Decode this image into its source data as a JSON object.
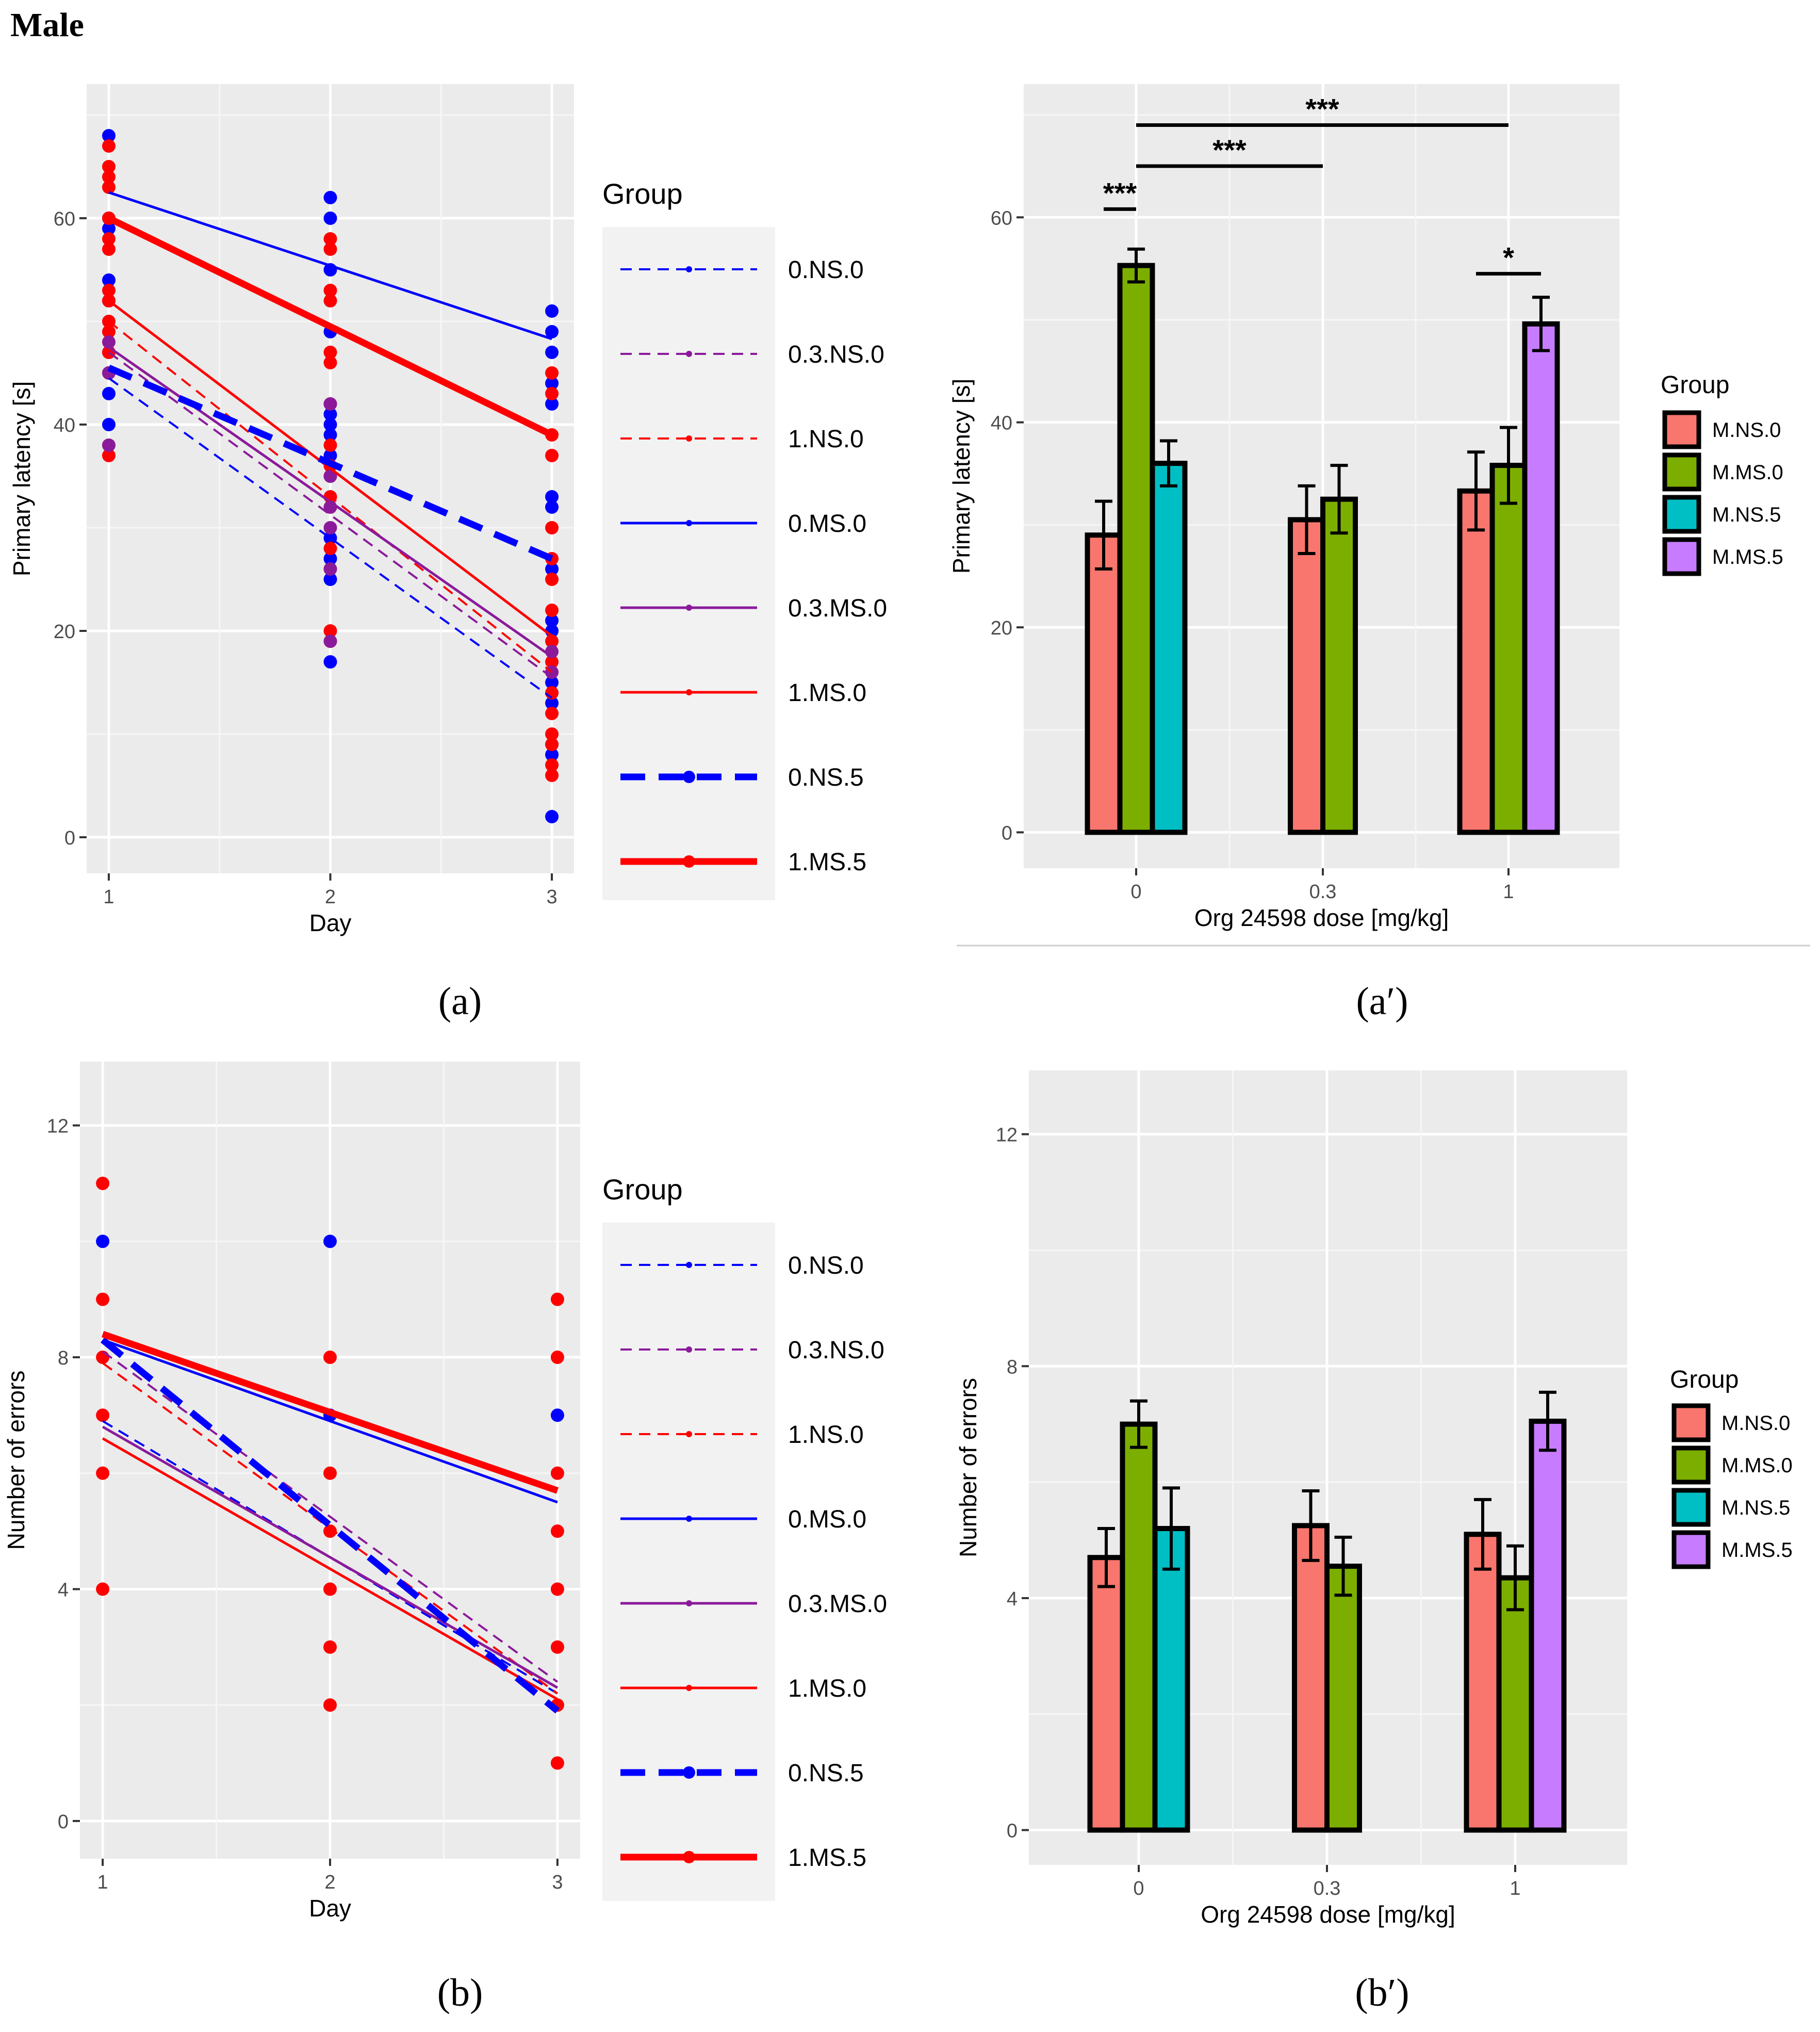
{
  "figure": {
    "title": "Male",
    "panel_labels": [
      "(a)",
      "(a′)",
      "(b)",
      "(b′)"
    ]
  },
  "legend_lines": {
    "title": "Group",
    "entries": [
      {
        "label": "0.NS.0",
        "color": "#0000ff",
        "style": "dashed-thin"
      },
      {
        "label": "0.3.NS.0",
        "color": "#8b1a9b",
        "style": "dashed-thin"
      },
      {
        "label": "1.NS.0",
        "color": "#ff0000",
        "style": "dashed-thin"
      },
      {
        "label": "0.MS.0",
        "color": "#0000ff",
        "style": "solid-thin"
      },
      {
        "label": "0.3.MS.0",
        "color": "#8b1a9b",
        "style": "solid-thin"
      },
      {
        "label": "1.MS.0",
        "color": "#ff0000",
        "style": "solid-thin"
      },
      {
        "label": "0.NS.5",
        "color": "#0000ff",
        "style": "dashed-thick"
      },
      {
        "label": "1.MS.5",
        "color": "#ff0000",
        "style": "solid-thick"
      }
    ]
  },
  "legend_bars": {
    "title": "Group",
    "entries": [
      {
        "label": "M.NS.0",
        "color": "#f8766d"
      },
      {
        "label": "M.MS.0",
        "color": "#7cae00"
      },
      {
        "label": "M.NS.5",
        "color": "#00bfc4"
      },
      {
        "label": "M.MS.5",
        "color": "#c77cff"
      }
    ]
  },
  "chart_data": [
    {
      "type": "scatter",
      "panel": "a",
      "xlabel": "Day",
      "ylabel": "Primary latency [s]",
      "xlim": [
        0.9,
        3.1
      ],
      "ylim": [
        -3.5,
        73
      ],
      "xticks": [
        1,
        2,
        3
      ],
      "yticks": [
        0,
        20,
        40,
        60
      ],
      "grid": true,
      "points": [
        {
          "x": 1,
          "y": 68,
          "c": "b"
        },
        {
          "x": 1,
          "y": 60,
          "c": "b"
        },
        {
          "x": 1,
          "y": 59,
          "c": "b"
        },
        {
          "x": 1,
          "y": 54,
          "c": "b"
        },
        {
          "x": 1,
          "y": 52,
          "c": "b"
        },
        {
          "x": 1,
          "y": 47,
          "c": "b"
        },
        {
          "x": 1,
          "y": 45,
          "c": "b"
        },
        {
          "x": 1,
          "y": 43,
          "c": "b"
        },
        {
          "x": 1,
          "y": 40,
          "c": "b"
        },
        {
          "x": 1,
          "y": 67,
          "c": "r"
        },
        {
          "x": 1,
          "y": 65,
          "c": "r"
        },
        {
          "x": 1,
          "y": 64,
          "c": "r"
        },
        {
          "x": 1,
          "y": 63,
          "c": "r"
        },
        {
          "x": 1,
          "y": 60,
          "c": "r"
        },
        {
          "x": 1,
          "y": 58,
          "c": "r"
        },
        {
          "x": 1,
          "y": 57,
          "c": "r"
        },
        {
          "x": 1,
          "y": 53,
          "c": "r"
        },
        {
          "x": 1,
          "y": 52,
          "c": "r"
        },
        {
          "x": 1,
          "y": 50,
          "c": "r"
        },
        {
          "x": 1,
          "y": 49,
          "c": "r"
        },
        {
          "x": 1,
          "y": 47,
          "c": "r"
        },
        {
          "x": 1,
          "y": 45,
          "c": "r"
        },
        {
          "x": 1,
          "y": 38,
          "c": "r"
        },
        {
          "x": 1,
          "y": 37,
          "c": "r"
        },
        {
          "x": 1,
          "y": 48,
          "c": "p"
        },
        {
          "x": 1,
          "y": 45,
          "c": "p"
        },
        {
          "x": 1,
          "y": 38,
          "c": "p"
        },
        {
          "x": 2,
          "y": 62,
          "c": "b"
        },
        {
          "x": 2,
          "y": 60,
          "c": "b"
        },
        {
          "x": 2,
          "y": 55,
          "c": "b"
        },
        {
          "x": 2,
          "y": 49,
          "c": "b"
        },
        {
          "x": 2,
          "y": 41,
          "c": "b"
        },
        {
          "x": 2,
          "y": 40,
          "c": "b"
        },
        {
          "x": 2,
          "y": 39,
          "c": "b"
        },
        {
          "x": 2,
          "y": 37,
          "c": "b"
        },
        {
          "x": 2,
          "y": 35,
          "c": "b"
        },
        {
          "x": 2,
          "y": 29,
          "c": "b"
        },
        {
          "x": 2,
          "y": 27,
          "c": "b"
        },
        {
          "x": 2,
          "y": 25,
          "c": "b"
        },
        {
          "x": 2,
          "y": 17,
          "c": "b"
        },
        {
          "x": 2,
          "y": 58,
          "c": "r"
        },
        {
          "x": 2,
          "y": 57,
          "c": "r"
        },
        {
          "x": 2,
          "y": 53,
          "c": "r"
        },
        {
          "x": 2,
          "y": 52,
          "c": "r"
        },
        {
          "x": 2,
          "y": 47,
          "c": "r"
        },
        {
          "x": 2,
          "y": 46,
          "c": "r"
        },
        {
          "x": 2,
          "y": 42,
          "c": "r"
        },
        {
          "x": 2,
          "y": 38,
          "c": "r"
        },
        {
          "x": 2,
          "y": 36,
          "c": "r"
        },
        {
          "x": 2,
          "y": 33,
          "c": "r"
        },
        {
          "x": 2,
          "y": 32,
          "c": "r"
        },
        {
          "x": 2,
          "y": 28,
          "c": "r"
        },
        {
          "x": 2,
          "y": 26,
          "c": "r"
        },
        {
          "x": 2,
          "y": 20,
          "c": "r"
        },
        {
          "x": 2,
          "y": 19,
          "c": "r"
        },
        {
          "x": 2,
          "y": 42,
          "c": "p"
        },
        {
          "x": 2,
          "y": 35,
          "c": "p"
        },
        {
          "x": 2,
          "y": 32,
          "c": "p"
        },
        {
          "x": 2,
          "y": 30,
          "c": "p"
        },
        {
          "x": 2,
          "y": 26,
          "c": "p"
        },
        {
          "x": 2,
          "y": 19,
          "c": "p"
        },
        {
          "x": 3,
          "y": 51,
          "c": "b"
        },
        {
          "x": 3,
          "y": 49,
          "c": "b"
        },
        {
          "x": 3,
          "y": 47,
          "c": "b"
        },
        {
          "x": 3,
          "y": 44,
          "c": "b"
        },
        {
          "x": 3,
          "y": 42,
          "c": "b"
        },
        {
          "x": 3,
          "y": 33,
          "c": "b"
        },
        {
          "x": 3,
          "y": 32,
          "c": "b"
        },
        {
          "x": 3,
          "y": 26,
          "c": "b"
        },
        {
          "x": 3,
          "y": 21,
          "c": "b"
        },
        {
          "x": 3,
          "y": 20,
          "c": "b"
        },
        {
          "x": 3,
          "y": 15,
          "c": "b"
        },
        {
          "x": 3,
          "y": 13,
          "c": "b"
        },
        {
          "x": 3,
          "y": 9,
          "c": "b"
        },
        {
          "x": 3,
          "y": 8,
          "c": "b"
        },
        {
          "x": 3,
          "y": 2,
          "c": "b"
        },
        {
          "x": 3,
          "y": 45,
          "c": "r"
        },
        {
          "x": 3,
          "y": 43,
          "c": "r"
        },
        {
          "x": 3,
          "y": 39,
          "c": "r"
        },
        {
          "x": 3,
          "y": 37,
          "c": "r"
        },
        {
          "x": 3,
          "y": 30,
          "c": "r"
        },
        {
          "x": 3,
          "y": 27,
          "c": "r"
        },
        {
          "x": 3,
          "y": 25,
          "c": "r"
        },
        {
          "x": 3,
          "y": 22,
          "c": "r"
        },
        {
          "x": 3,
          "y": 19,
          "c": "r"
        },
        {
          "x": 3,
          "y": 17,
          "c": "r"
        },
        {
          "x": 3,
          "y": 16,
          "c": "r"
        },
        {
          "x": 3,
          "y": 14,
          "c": "r"
        },
        {
          "x": 3,
          "y": 12,
          "c": "r"
        },
        {
          "x": 3,
          "y": 10,
          "c": "r"
        },
        {
          "x": 3,
          "y": 9,
          "c": "r"
        },
        {
          "x": 3,
          "y": 7,
          "c": "r"
        },
        {
          "x": 3,
          "y": 6,
          "c": "r"
        },
        {
          "x": 3,
          "y": 18,
          "c": "p"
        },
        {
          "x": 3,
          "y": 16,
          "c": "p"
        }
      ],
      "series": [
        {
          "name": "0.NS.0",
          "x": [
            1,
            3
          ],
          "y": [
            44.5,
            13.5
          ]
        },
        {
          "name": "0.3.NS.0",
          "x": [
            1,
            3
          ],
          "y": [
            47,
            15.5
          ]
        },
        {
          "name": "1.NS.0",
          "x": [
            1,
            3
          ],
          "y": [
            50,
            16
          ]
        },
        {
          "name": "0.MS.0",
          "x": [
            1,
            3
          ],
          "y": [
            62.5,
            48.3
          ]
        },
        {
          "name": "0.3.MS.0",
          "x": [
            1,
            3
          ],
          "y": [
            47.5,
            17.5
          ]
        },
        {
          "name": "1.MS.0",
          "x": [
            1,
            3
          ],
          "y": [
            52,
            19.5
          ]
        },
        {
          "name": "0.NS.5",
          "x": [
            1,
            3
          ],
          "y": [
            45.5,
            27
          ]
        },
        {
          "name": "1.MS.5",
          "x": [
            1,
            3
          ],
          "y": [
            60,
            39
          ]
        }
      ]
    },
    {
      "type": "bar",
      "panel": "a′",
      "xlabel": "Org 24598 dose [mg/kg]",
      "ylabel": "Primary latency [s]",
      "categories": [
        "0",
        "0.3",
        "1"
      ],
      "ylim": [
        -3.5,
        73
      ],
      "yticks": [
        0,
        20,
        40,
        60
      ],
      "grid": true,
      "bars": [
        {
          "category": "0",
          "group": "M.NS.0",
          "value": 29,
          "err": 3.3
        },
        {
          "category": "0",
          "group": "M.MS.0",
          "value": 55.3,
          "err": 1.6
        },
        {
          "category": "0",
          "group": "M.NS.5",
          "value": 36,
          "err": 2.2
        },
        {
          "category": "0.3",
          "group": "M.NS.0",
          "value": 30.5,
          "err": 3.3
        },
        {
          "category": "0.3",
          "group": "M.MS.0",
          "value": 32.5,
          "err": 3.3
        },
        {
          "category": "1",
          "group": "M.NS.0",
          "value": 33.3,
          "err": 3.8
        },
        {
          "category": "1",
          "group": "M.MS.0",
          "value": 35.8,
          "err": 3.7
        },
        {
          "category": "1",
          "group": "M.MS.5",
          "value": 49.6,
          "err": 2.6
        }
      ],
      "significance": [
        {
          "label": "***",
          "y": 69,
          "from": "0",
          "to": "1"
        },
        {
          "label": "***",
          "y": 65,
          "from": "0",
          "to": "0.3"
        },
        {
          "label": "***",
          "y": 60.8,
          "from": "0:M.NS.0",
          "to": "0:M.MS.0"
        },
        {
          "label": "*",
          "y": 54.5,
          "from": "1:M.NS.0",
          "to": "1:M.MS.5"
        }
      ]
    },
    {
      "type": "scatter",
      "panel": "b",
      "xlabel": "Day",
      "ylabel": "Number of errors",
      "xlim": [
        0.9,
        3.1
      ],
      "ylim": [
        -0.65,
        13.1
      ],
      "xticks": [
        1,
        2,
        3
      ],
      "yticks": [
        0,
        4,
        8,
        12
      ],
      "grid": true,
      "points": [
        {
          "x": 1,
          "y": 11,
          "c": "r"
        },
        {
          "x": 1,
          "y": 10,
          "c": "b"
        },
        {
          "x": 1,
          "y": 9,
          "c": "r"
        },
        {
          "x": 1,
          "y": 8,
          "c": "r"
        },
        {
          "x": 1,
          "y": 7,
          "c": "r"
        },
        {
          "x": 1,
          "y": 6,
          "c": "r"
        },
        {
          "x": 1,
          "y": 4,
          "c": "r"
        },
        {
          "x": 2,
          "y": 10,
          "c": "b"
        },
        {
          "x": 2,
          "y": 8,
          "c": "r"
        },
        {
          "x": 2,
          "y": 7,
          "c": "b"
        },
        {
          "x": 2,
          "y": 6,
          "c": "r"
        },
        {
          "x": 2,
          "y": 5,
          "c": "r"
        },
        {
          "x": 2,
          "y": 4,
          "c": "r"
        },
        {
          "x": 2,
          "y": 3,
          "c": "r"
        },
        {
          "x": 2,
          "y": 2,
          "c": "r"
        },
        {
          "x": 3,
          "y": 9,
          "c": "r"
        },
        {
          "x": 3,
          "y": 8,
          "c": "r"
        },
        {
          "x": 3,
          "y": 7,
          "c": "b"
        },
        {
          "x": 3,
          "y": 6,
          "c": "r"
        },
        {
          "x": 3,
          "y": 5,
          "c": "r"
        },
        {
          "x": 3,
          "y": 4,
          "c": "r"
        },
        {
          "x": 3,
          "y": 3,
          "c": "r"
        },
        {
          "x": 3,
          "y": 2,
          "c": "r"
        },
        {
          "x": 3,
          "y": 1,
          "c": "r"
        }
      ],
      "series": [
        {
          "name": "0.NS.0",
          "x": [
            1,
            3
          ],
          "y": [
            6.9,
            2.2
          ]
        },
        {
          "name": "0.3.NS.0",
          "x": [
            1,
            3
          ],
          "y": [
            8.1,
            2.4
          ]
        },
        {
          "name": "1.NS.0",
          "x": [
            1,
            3
          ],
          "y": [
            7.9,
            2.2
          ]
        },
        {
          "name": "0.MS.0",
          "x": [
            1,
            3
          ],
          "y": [
            8.3,
            5.5
          ]
        },
        {
          "name": "0.3.MS.0",
          "x": [
            1,
            3
          ],
          "y": [
            6.8,
            2.3
          ]
        },
        {
          "name": "1.MS.0",
          "x": [
            1,
            3
          ],
          "y": [
            6.6,
            2.1
          ]
        },
        {
          "name": "0.NS.5",
          "x": [
            1,
            3
          ],
          "y": [
            8.3,
            1.9
          ]
        },
        {
          "name": "1.MS.5",
          "x": [
            1,
            3
          ],
          "y": [
            8.4,
            5.7
          ]
        }
      ]
    },
    {
      "type": "bar",
      "panel": "b′",
      "xlabel": "Org 24598 dose [mg/kg]",
      "ylabel": "Number of errors",
      "categories": [
        "0",
        "0.3",
        "1"
      ],
      "ylim": [
        -0.6,
        13.1
      ],
      "yticks": [
        0,
        4,
        8,
        12
      ],
      "grid": true,
      "bars": [
        {
          "category": "0",
          "group": "M.NS.0",
          "value": 4.7,
          "err": 0.5
        },
        {
          "category": "0",
          "group": "M.MS.0",
          "value": 7.0,
          "err": 0.4
        },
        {
          "category": "0",
          "group": "M.NS.5",
          "value": 5.2,
          "err": 0.7
        },
        {
          "category": "0.3",
          "group": "M.NS.0",
          "value": 5.25,
          "err": 0.6
        },
        {
          "category": "0.3",
          "group": "M.MS.0",
          "value": 4.55,
          "err": 0.5
        },
        {
          "category": "1",
          "group": "M.NS.0",
          "value": 5.1,
          "err": 0.6
        },
        {
          "category": "1",
          "group": "M.MS.0",
          "value": 4.35,
          "err": 0.55
        },
        {
          "category": "1",
          "group": "M.MS.5",
          "value": 7.05,
          "err": 0.5
        }
      ],
      "significance": []
    }
  ]
}
